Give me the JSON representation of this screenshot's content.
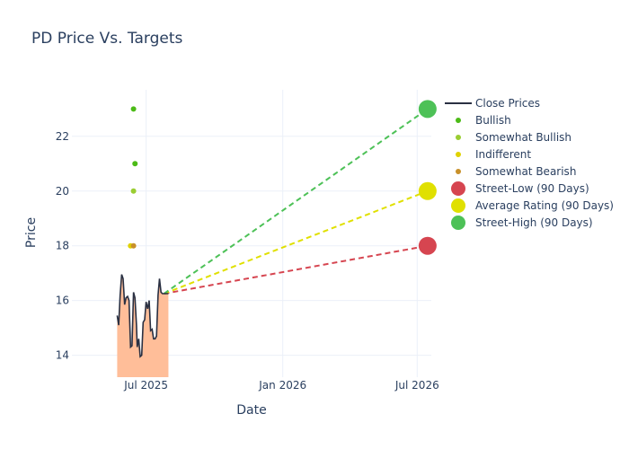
{
  "title": "PD Price Vs. Targets",
  "chart_data": {
    "type": "line",
    "title": "PD Price Vs. Targets",
    "xlabel": "Date",
    "ylabel": "Price",
    "x_tick_labels": [
      "Jul 2025",
      "Jan 2026",
      "Jul 2026"
    ],
    "x_ticks": [
      "2025-07-01",
      "2026-01-01",
      "2026-07-01"
    ],
    "y_ticks": [
      14,
      16,
      18,
      20,
      22
    ],
    "xlim": [
      "2025-03-23",
      "2026-07-20"
    ],
    "ylim": [
      13.2,
      23.7
    ],
    "grid": true,
    "legend_position": "top-right",
    "close_prices": {
      "name": "Close Prices",
      "color": "#2a3042",
      "fill_color": "#ffbe99",
      "dates": [
        "2025-05-23",
        "2025-05-25",
        "2025-05-27",
        "2025-05-29",
        "2025-05-31",
        "2025-06-02",
        "2025-06-04",
        "2025-06-06",
        "2025-06-08",
        "2025-06-10",
        "2025-06-12",
        "2025-06-14",
        "2025-06-16",
        "2025-06-18",
        "2025-06-19",
        "2025-06-21",
        "2025-06-23",
        "2025-06-25",
        "2025-06-27",
        "2025-06-29",
        "2025-07-01",
        "2025-07-03",
        "2025-07-05",
        "2025-07-07",
        "2025-07-09",
        "2025-07-11",
        "2025-07-13",
        "2025-07-15",
        "2025-07-17",
        "2025-07-19",
        "2025-07-21",
        "2025-07-23",
        "2025-07-25",
        "2025-07-27",
        "2025-07-29",
        "2025-07-31"
      ],
      "values": [
        15.45,
        15.1,
        16.2,
        16.95,
        16.8,
        15.85,
        16.1,
        16.15,
        16.0,
        14.3,
        14.35,
        16.3,
        16.1,
        15.1,
        14.3,
        14.6,
        13.95,
        14.0,
        15.2,
        15.3,
        15.95,
        15.7,
        16.0,
        14.9,
        14.95,
        14.6,
        14.6,
        14.7,
        16.2,
        16.8,
        16.3,
        16.25,
        16.25,
        16.25,
        16.25,
        16.25
      ]
    },
    "analyst_ratings": [
      {
        "name": "Bullish",
        "color": "#4cbb17",
        "points": [
          {
            "date": "2025-06-14",
            "value": 23
          },
          {
            "date": "2025-06-16",
            "value": 21
          }
        ]
      },
      {
        "name": "Somewhat Bullish",
        "color": "#9acd32",
        "points": [
          {
            "date": "2025-06-14",
            "value": 20
          }
        ]
      },
      {
        "name": "Indifferent",
        "color": "#e0d200",
        "points": [
          {
            "date": "2025-06-10",
            "value": 18
          }
        ]
      },
      {
        "name": "Somewhat Bearish",
        "color": "#c8902a",
        "points": [
          {
            "date": "2025-06-14",
            "value": 18
          }
        ]
      }
    ],
    "targets": [
      {
        "name": "Street-Low (90 Days)",
        "color": "#d64550",
        "value": 18,
        "from_date": "2025-07-25",
        "from_value": 16.25,
        "to_date": "2026-07-15"
      },
      {
        "name": "Average Rating (90 Days)",
        "color": "#e0e000",
        "value": 20,
        "from_date": "2025-07-25",
        "from_value": 16.25,
        "to_date": "2026-07-15"
      },
      {
        "name": "Street-High (90 Days)",
        "color": "#4dc157",
        "value": 23,
        "from_date": "2025-07-25",
        "from_value": 16.25,
        "to_date": "2026-07-15"
      }
    ]
  },
  "legend": [
    {
      "label": "Close Prices",
      "kind": "line",
      "color": "#2a3042"
    },
    {
      "label": "Bullish",
      "kind": "dot",
      "color": "#4cbb17"
    },
    {
      "label": "Somewhat Bullish",
      "kind": "dot",
      "color": "#9acd32"
    },
    {
      "label": "Indifferent",
      "kind": "dot",
      "color": "#e0d200"
    },
    {
      "label": "Somewhat Bearish",
      "kind": "dot",
      "color": "#c8902a"
    },
    {
      "label": "Street-Low (90 Days)",
      "kind": "big",
      "color": "#d64550"
    },
    {
      "label": "Average Rating (90 Days)",
      "kind": "big",
      "color": "#e0e000"
    },
    {
      "label": "Street-High (90 Days)",
      "kind": "big",
      "color": "#4dc157"
    }
  ]
}
